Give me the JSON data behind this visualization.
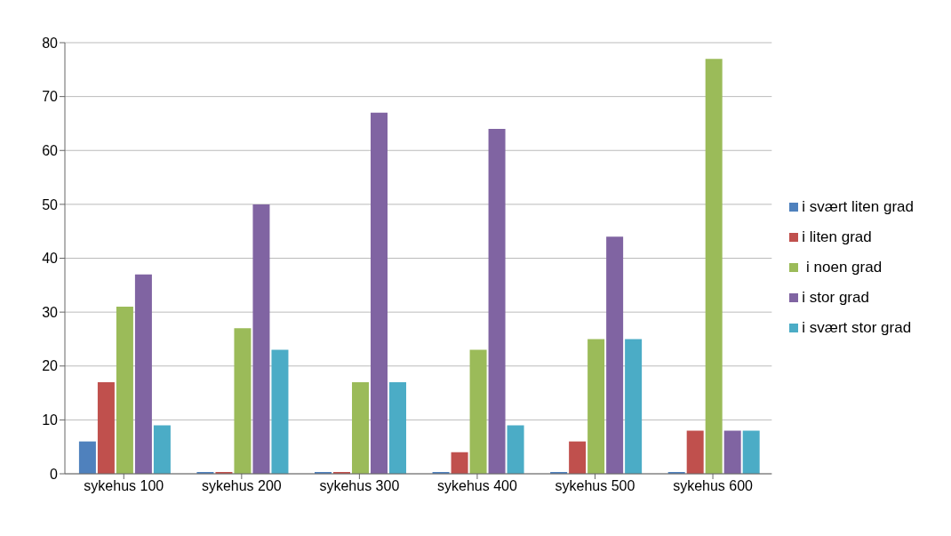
{
  "chart_data": {
    "type": "bar",
    "categories": [
      "sykehus 100",
      "sykehus 200",
      "sykehus 300",
      "sykehus 400",
      "sykehus 500",
      "sykehus 600"
    ],
    "series": [
      {
        "name": "i svært liten grad",
        "color": "#4f81bd",
        "values": [
          6,
          0,
          0,
          0,
          0,
          0
        ]
      },
      {
        "name": "i liten grad",
        "color": "#c0504d",
        "values": [
          17,
          0,
          0,
          4,
          6,
          8
        ]
      },
      {
        "name": " i noen grad",
        "color": "#9bbb59",
        "values": [
          31,
          27,
          17,
          23,
          25,
          77
        ]
      },
      {
        "name": "i stor grad",
        "color": "#8064a2",
        "values": [
          37,
          50,
          67,
          64,
          44,
          8
        ]
      },
      {
        "name": "i svært stor grad",
        "color": "#4bacc6",
        "values": [
          9,
          23,
          17,
          9,
          25,
          8
        ]
      }
    ],
    "ylim": [
      0,
      80
    ],
    "yticks": [
      0,
      10,
      20,
      30,
      40,
      50,
      60,
      70,
      80
    ],
    "grid": "y",
    "legend": "right"
  }
}
